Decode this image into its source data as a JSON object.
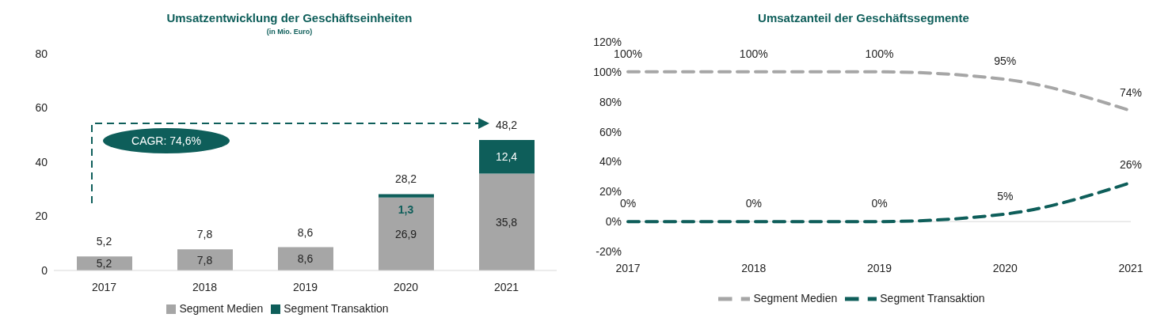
{
  "chart_data": [
    {
      "type": "bar",
      "title": "Umsatzentwicklung der Geschäftseinheiten",
      "subtitle": "(in Mio. Euro)",
      "categories": [
        "2017",
        "2018",
        "2019",
        "2020",
        "2021"
      ],
      "stacked": true,
      "series": [
        {
          "name": "Segment Medien",
          "color": "#a6a6a6",
          "values": [
            5.2,
            7.8,
            8.6,
            26.9,
            35.8
          ],
          "value_labels": [
            "5,2",
            "7,8",
            "8,6",
            "26,9",
            "35,8"
          ]
        },
        {
          "name": "Segment Transaktion",
          "color": "#0e5e5a",
          "values": [
            0,
            0,
            0,
            1.3,
            12.4
          ],
          "value_labels": [
            null,
            null,
            null,
            "1,3",
            "12,4"
          ]
        }
      ],
      "totals": [
        "5,2",
        "7,8",
        "8,6",
        "28,2",
        "48,2"
      ],
      "annotations": [
        "CAGR: 74,6%"
      ],
      "ylim": [
        0,
        80
      ],
      "yticks": [
        0,
        20,
        40,
        60,
        80
      ],
      "grid": false,
      "legend": "bottom"
    },
    {
      "type": "line",
      "title": "Umsatzanteil der Geschäftssegmente",
      "categories": [
        "2017",
        "2018",
        "2019",
        "2020",
        "2021"
      ],
      "line_style": "dashed",
      "marker": "none",
      "series": [
        {
          "name": "Segment Medien",
          "color": "#a6a6a6",
          "values": [
            100,
            100,
            100,
            95,
            74
          ],
          "value_labels": [
            "100%",
            "100%",
            "100%",
            "95%",
            "74%"
          ]
        },
        {
          "name": "Segment Transaktion",
          "color": "#0e5e5a",
          "values": [
            0,
            0,
            0,
            5,
            26
          ],
          "value_labels": [
            "0%",
            "0%",
            "0%",
            "5%",
            "26%"
          ]
        }
      ],
      "ref_lines": [
        {
          "axis": "y",
          "value": 0,
          "color": "#d9d9d9",
          "line_style": "solid"
        }
      ],
      "ylim": [
        -20,
        120
      ],
      "yticks": [
        {
          "value": -20,
          "label": "-20%"
        },
        {
          "value": 0,
          "label": "0%"
        },
        {
          "value": 20,
          "label": "20%"
        },
        {
          "value": 40,
          "label": "40%"
        },
        {
          "value": 60,
          "label": "60%"
        },
        {
          "value": 80,
          "label": "80%"
        },
        {
          "value": 100,
          "label": "100%"
        },
        {
          "value": 120,
          "label": "120%"
        }
      ],
      "grid": false,
      "legend": "bottom"
    }
  ]
}
